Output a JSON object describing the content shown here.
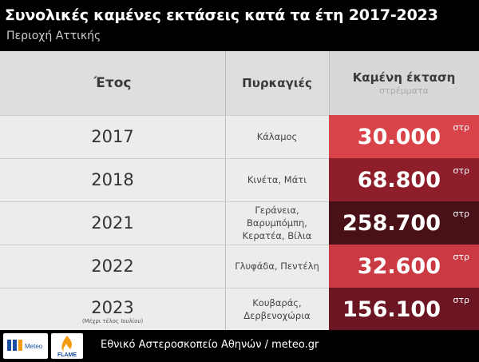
{
  "header": {
    "title": "Συνολικές καμένες εκτάσεις κατά τα έτη 2017-2023",
    "subtitle": "Περιοχή Αττικής"
  },
  "columns": {
    "year": "Έτος",
    "fires": "Πυρκαγιές",
    "area": "Καμένη έκταση",
    "area_unit": "στρέμματα"
  },
  "chart_data": {
    "type": "table",
    "title": "Συνολικές καμένες εκτάσεις κατά τα έτη 2017-2023",
    "subtitle": "Περιοχή Αττικής",
    "columns": [
      "Έτος",
      "Πυρκαγιές",
      "Καμένη έκταση"
    ],
    "rows": [
      {
        "year": "2017",
        "year_note": "",
        "fires": [
          "Κάλαμος"
        ],
        "area": 30000,
        "area_label": "30.000",
        "unit": "στρ",
        "color": "#d9444a"
      },
      {
        "year": "2018",
        "year_note": "",
        "fires": [
          "Κινέτα, Μάτι"
        ],
        "area": 68800,
        "area_label": "68.800",
        "unit": "στρ",
        "color": "#8e1f2a"
      },
      {
        "year": "2021",
        "year_note": "",
        "fires": [
          "Γεράνεια, Βαρυμπόμπη,",
          "Κερατέα, Βίλια"
        ],
        "area": 258700,
        "area_label": "258.700",
        "unit": "στρ",
        "color": "#4a1018"
      },
      {
        "year": "2022",
        "year_note": "",
        "fires": [
          "Γλυφάδα, Πεντέλη"
        ],
        "area": 32600,
        "area_label": "32.600",
        "unit": "στρ",
        "color": "#c93a42"
      },
      {
        "year": "2023",
        "year_note": "(Μέχρι τέλος Ιουλίου)",
        "fires": [
          "Κουβαράς,",
          "Δερβενοχώρια"
        ],
        "area": 156100,
        "area_label": "156.100",
        "unit": "στρ",
        "color": "#6b1622"
      }
    ]
  },
  "footer": {
    "logo_meteo": "Meteo",
    "logo_flame": "FLAME",
    "source": "Εθνικό Αστεροσκοπείο Αθηνών / meteo.gr"
  }
}
